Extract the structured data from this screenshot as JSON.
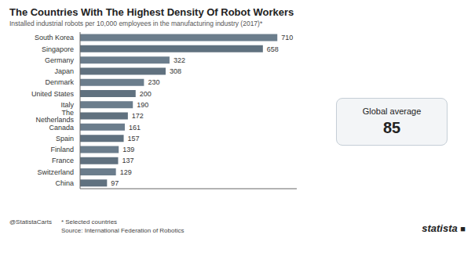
{
  "chart_data": {
    "type": "bar",
    "orientation": "horizontal",
    "title": "The Countries With The Highest Density Of Robot Workers",
    "subtitle": "Installed industrial robots per 10,000 employees in the manufacturing industry (2017)*",
    "categories": [
      "South Korea",
      "Singapore",
      "Germany",
      "Japan",
      "Denmark",
      "United States",
      "Italy",
      "The Netherlands",
      "Canada",
      "Spain",
      "Finland",
      "France",
      "Switzerland",
      "China"
    ],
    "values": [
      710,
      658,
      322,
      308,
      230,
      200,
      190,
      172,
      161,
      157,
      139,
      137,
      129,
      97
    ],
    "colors": [
      "#6b7d8c",
      "#60717f",
      "#6b7d8c",
      "#60717f",
      "#6b7d8c",
      "#60717f",
      "#6b7d8c",
      "#60717f",
      "#6b7d8c",
      "#60717f",
      "#6b7d8c",
      "#60717f",
      "#6b7d8c",
      "#60717f"
    ],
    "xlim": [
      0,
      780
    ],
    "data_labels": true,
    "tick_labels": "y",
    "grid": false,
    "global_average": {
      "label": "Global average",
      "value": 85
    },
    "annotations": [
      "@StatistaCarts",
      "* Selected countries",
      "Source: International Federation of Robotics",
      "statista",
      "■"
    ]
  }
}
